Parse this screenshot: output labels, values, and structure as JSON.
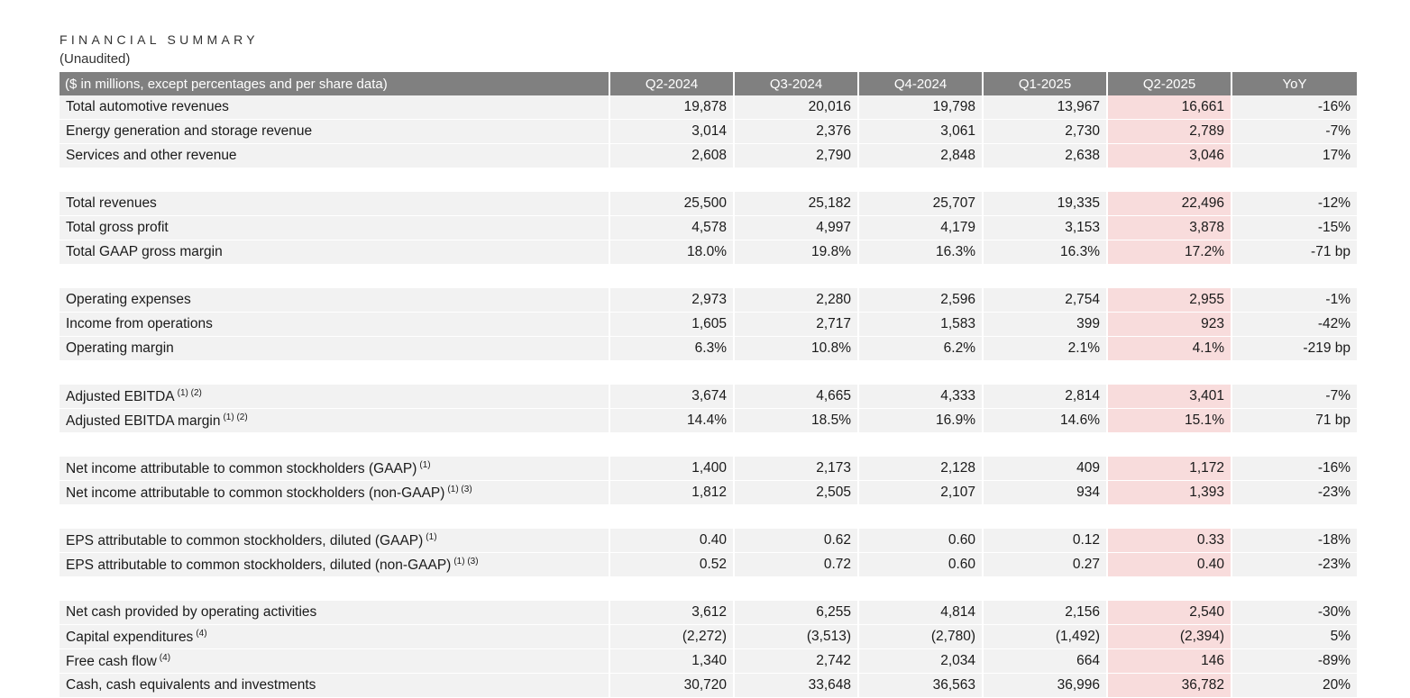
{
  "header": {
    "title": "FINANCIAL SUMMARY",
    "subtitle": "(Unaudited)"
  },
  "table": {
    "label_header": "($ in millions, except percentages and per share data)",
    "columns": [
      "Q2-2024",
      "Q3-2024",
      "Q4-2024",
      "Q1-2025",
      "Q2-2025",
      "YoY"
    ],
    "highlight_column": "Q2-2025",
    "groups": [
      {
        "rows": [
          {
            "label": "Total automotive revenues",
            "footnote": "",
            "values": [
              "19,878",
              "20,016",
              "19,798",
              "13,967",
              "16,661",
              "-16%"
            ]
          },
          {
            "label": "Energy generation and storage revenue",
            "footnote": "",
            "values": [
              "3,014",
              "2,376",
              "3,061",
              "2,730",
              "2,789",
              "-7%"
            ]
          },
          {
            "label": "Services and other revenue",
            "footnote": "",
            "values": [
              "2,608",
              "2,790",
              "2,848",
              "2,638",
              "3,046",
              "17%"
            ]
          }
        ]
      },
      {
        "rows": [
          {
            "label": "Total revenues",
            "footnote": "",
            "values": [
              "25,500",
              "25,182",
              "25,707",
              "19,335",
              "22,496",
              "-12%"
            ]
          },
          {
            "label": "Total gross profit",
            "footnote": "",
            "values": [
              "4,578",
              "4,997",
              "4,179",
              "3,153",
              "3,878",
              "-15%"
            ]
          },
          {
            "label": "Total GAAP gross margin",
            "footnote": "",
            "values": [
              "18.0%",
              "19.8%",
              "16.3%",
              "16.3%",
              "17.2%",
              "-71 bp"
            ]
          }
        ]
      },
      {
        "rows": [
          {
            "label": "Operating expenses",
            "footnote": "",
            "values": [
              "2,973",
              "2,280",
              "2,596",
              "2,754",
              "2,955",
              "-1%"
            ]
          },
          {
            "label": "Income from operations",
            "footnote": "",
            "values": [
              "1,605",
              "2,717",
              "1,583",
              "399",
              "923",
              "-42%"
            ]
          },
          {
            "label": "Operating margin",
            "footnote": "",
            "values": [
              "6.3%",
              "10.8%",
              "6.2%",
              "2.1%",
              "4.1%",
              "-219 bp"
            ]
          }
        ]
      },
      {
        "rows": [
          {
            "label": "Adjusted EBITDA",
            "footnote": "(1) (2)",
            "values": [
              "3,674",
              "4,665",
              "4,333",
              "2,814",
              "3,401",
              "-7%"
            ]
          },
          {
            "label": "Adjusted EBITDA margin",
            "footnote": "(1) (2)",
            "values": [
              "14.4%",
              "18.5%",
              "16.9%",
              "14.6%",
              "15.1%",
              "71 bp"
            ]
          }
        ]
      },
      {
        "rows": [
          {
            "label": "Net income attributable to common stockholders (GAAP)",
            "footnote": "(1)",
            "values": [
              "1,400",
              "2,173",
              "2,128",
              "409",
              "1,172",
              "-16%"
            ]
          },
          {
            "label": "Net income attributable to common stockholders (non-GAAP)",
            "footnote": "(1) (3)",
            "values": [
              "1,812",
              "2,505",
              "2,107",
              "934",
              "1,393",
              "-23%"
            ]
          }
        ]
      },
      {
        "rows": [
          {
            "label": "EPS attributable to common stockholders, diluted (GAAP)",
            "footnote": "(1)",
            "values": [
              "0.40",
              "0.62",
              "0.60",
              "0.12",
              "0.33",
              "-18%"
            ]
          },
          {
            "label": "EPS attributable to common stockholders, diluted (non-GAAP)",
            "footnote": "(1) (3)",
            "values": [
              "0.52",
              "0.72",
              "0.60",
              "0.27",
              "0.40",
              "-23%"
            ]
          }
        ]
      },
      {
        "rows": [
          {
            "label": "Net cash provided by operating activities",
            "footnote": "",
            "values": [
              "3,612",
              "6,255",
              "4,814",
              "2,156",
              "2,540",
              "-30%"
            ]
          },
          {
            "label": "Capital expenditures",
            "footnote": "(4)",
            "values": [
              "(2,272)",
              "(3,513)",
              "(2,780)",
              "(1,492)",
              "(2,394)",
              "5%"
            ]
          },
          {
            "label": "Free cash flow",
            "footnote": "(4)",
            "values": [
              "1,340",
              "2,742",
              "2,034",
              "664",
              "146",
              "-89%"
            ]
          },
          {
            "label": "Cash, cash equivalents and investments",
            "footnote": "",
            "values": [
              "30,720",
              "33,648",
              "36,563",
              "36,996",
              "36,782",
              "20%"
            ]
          }
        ]
      }
    ]
  }
}
